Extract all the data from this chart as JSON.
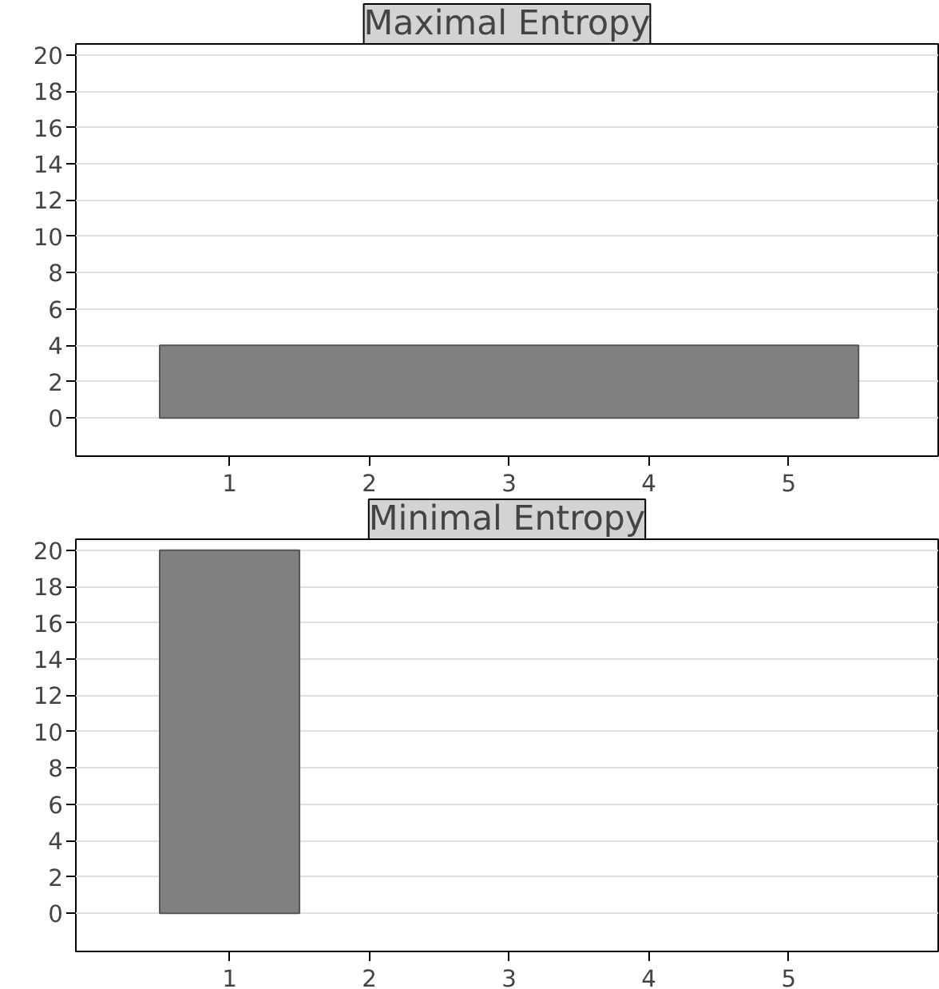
{
  "chart_data": [
    {
      "type": "histogram",
      "title": "Maximal Entropy",
      "bins": [
        0.5,
        5.5
      ],
      "values": [
        4
      ],
      "color": "#808080",
      "xlim": [
        -0.1,
        6.07
      ],
      "ylim": [
        -2.1,
        20.6
      ],
      "xticks": [
        1,
        2,
        3,
        4,
        5
      ],
      "yticks": [
        0,
        2,
        4,
        6,
        8,
        10,
        12,
        14,
        16,
        18,
        20
      ],
      "grid": "y"
    },
    {
      "type": "histogram",
      "title": "Minimal Entropy",
      "bins": [
        0.5,
        1.5
      ],
      "values": [
        20
      ],
      "color": "#808080",
      "xlim": [
        -0.1,
        6.07
      ],
      "ylim": [
        -2.1,
        20.6
      ],
      "xticks": [
        1,
        2,
        3,
        4,
        5
      ],
      "yticks": [
        0,
        2,
        4,
        6,
        8,
        10,
        12,
        14,
        16,
        18,
        20
      ],
      "grid": "y"
    }
  ]
}
